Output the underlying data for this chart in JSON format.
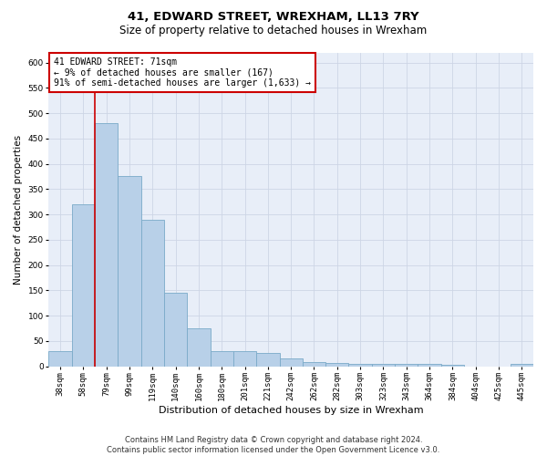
{
  "title": "41, EDWARD STREET, WREXHAM, LL13 7RY",
  "subtitle": "Size of property relative to detached houses in Wrexham",
  "xlabel": "Distribution of detached houses by size in Wrexham",
  "ylabel": "Number of detached properties",
  "categories": [
    "38sqm",
    "58sqm",
    "79sqm",
    "99sqm",
    "119sqm",
    "140sqm",
    "160sqm",
    "180sqm",
    "201sqm",
    "221sqm",
    "242sqm",
    "262sqm",
    "282sqm",
    "303sqm",
    "323sqm",
    "343sqm",
    "364sqm",
    "384sqm",
    "404sqm",
    "425sqm",
    "445sqm"
  ],
  "values": [
    30,
    320,
    480,
    375,
    290,
    145,
    75,
    30,
    30,
    27,
    15,
    8,
    7,
    5,
    4,
    4,
    4,
    3,
    0,
    0,
    5
  ],
  "bar_color": "#b8d0e8",
  "bar_edge_color": "#7aaac8",
  "bar_linewidth": 0.6,
  "vline_x": 1.5,
  "vline_color": "#cc0000",
  "vline_linewidth": 1.2,
  "annotation_text": "41 EDWARD STREET: 71sqm\n← 9% of detached houses are smaller (167)\n91% of semi-detached houses are larger (1,633) →",
  "annotation_box_color": "#ffffff",
  "annotation_box_edge_color": "#cc0000",
  "annotation_fontsize": 7.0,
  "ylim": [
    0,
    620
  ],
  "yticks": [
    0,
    50,
    100,
    150,
    200,
    250,
    300,
    350,
    400,
    450,
    500,
    550,
    600
  ],
  "grid_color": "#cdd5e5",
  "bg_color": "#e8eef8",
  "fig_bg_color": "#ffffff",
  "footer_text": "Contains HM Land Registry data © Crown copyright and database right 2024.\nContains public sector information licensed under the Open Government Licence v3.0.",
  "title_fontsize": 9.5,
  "subtitle_fontsize": 8.5,
  "xlabel_fontsize": 8.0,
  "ylabel_fontsize": 7.5,
  "tick_fontsize": 6.5,
  "footer_fontsize": 6.0
}
